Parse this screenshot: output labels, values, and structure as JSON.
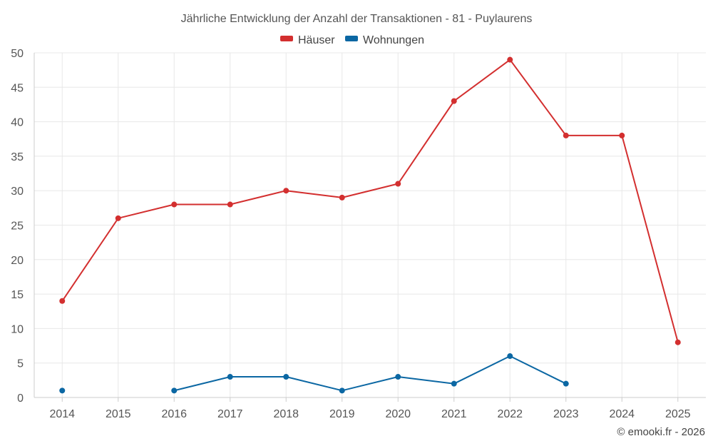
{
  "chart_data": {
    "type": "line",
    "title": "Jährliche Entwicklung der Anzahl der Transaktionen - 81 - Puylaurens",
    "categories": [
      "2014",
      "2015",
      "2016",
      "2017",
      "2018",
      "2019",
      "2020",
      "2021",
      "2022",
      "2023",
      "2024",
      "2025"
    ],
    "ylim": [
      0,
      50
    ],
    "yticks": [
      0,
      5,
      10,
      15,
      20,
      25,
      30,
      35,
      40,
      45,
      50
    ],
    "grid": true,
    "legend_position": "top-center",
    "series": [
      {
        "name": "Häuser",
        "color": "#d32f2f",
        "values": [
          14,
          26,
          28,
          28,
          30,
          29,
          31,
          43,
          49,
          38,
          38,
          8
        ]
      },
      {
        "name": "Wohnungen",
        "color": "#0b67a3",
        "values": [
          1,
          null,
          1,
          3,
          3,
          1,
          3,
          2,
          6,
          2,
          null,
          null
        ]
      }
    ],
    "credit": "© emooki.fr - 2026"
  }
}
